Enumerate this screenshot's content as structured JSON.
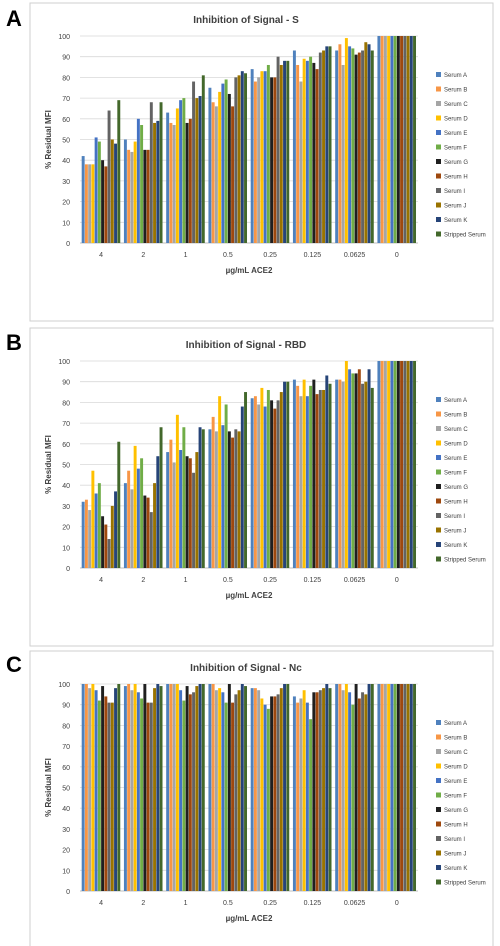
{
  "panels": [
    "A",
    "B",
    "C"
  ],
  "legend": [
    "Serum A",
    "Serum B",
    "Serum C",
    "Serum D",
    "Serum E",
    "Serum F",
    "Serum G",
    "Serum H",
    "Serum I",
    "Serum J",
    "Serum K",
    "Stripped Serum"
  ],
  "colors": [
    "#4F81BD",
    "#F79646",
    "#A5A5A5",
    "#FFC000",
    "#4472C4",
    "#70AD47",
    "#1F1F1F",
    "#9E480E",
    "#636363",
    "#997300",
    "#264478",
    "#43682B"
  ],
  "chart_data": [
    {
      "type": "bar",
      "title": "Inhibition of Signal - S",
      "xlabel": "µg/mL ACE2",
      "ylabel": "% Residual MFI",
      "ylim": [
        0,
        100
      ],
      "yticks": [
        0,
        10,
        20,
        30,
        40,
        50,
        60,
        70,
        80,
        90,
        100
      ],
      "categories": [
        "4",
        "2",
        "1",
        "0.5",
        "0.25",
        "0.125",
        "0.0625",
        "0"
      ],
      "series": [
        {
          "name": "Serum A",
          "values": [
            42,
            50,
            63,
            75,
            84,
            93,
            93,
            100
          ]
        },
        {
          "name": "Serum B",
          "values": [
            38,
            45,
            58,
            68,
            78,
            86,
            96,
            100
          ]
        },
        {
          "name": "Serum C",
          "values": [
            38,
            44,
            57,
            66,
            80,
            78,
            86,
            100
          ]
        },
        {
          "name": "Serum D",
          "values": [
            38,
            49,
            65,
            73,
            83,
            89,
            99,
            100
          ]
        },
        {
          "name": "Serum E",
          "values": [
            51,
            60,
            69,
            77,
            83,
            88,
            95,
            100
          ]
        },
        {
          "name": "Serum F",
          "values": [
            49,
            57,
            70,
            79,
            86,
            90,
            94,
            100
          ]
        },
        {
          "name": "Serum G",
          "values": [
            40,
            45,
            58,
            72,
            80,
            87,
            91,
            100
          ]
        },
        {
          "name": "Serum H",
          "values": [
            37,
            45,
            60,
            66,
            80,
            84,
            92,
            100
          ]
        },
        {
          "name": "Serum I",
          "values": [
            64,
            68,
            78,
            80,
            90,
            92,
            93,
            100
          ]
        },
        {
          "name": "Serum J",
          "values": [
            50,
            58,
            70,
            81,
            86,
            93,
            97,
            100
          ]
        },
        {
          "name": "Serum K",
          "values": [
            48,
            59,
            71,
            83,
            88,
            95,
            96,
            100
          ]
        },
        {
          "name": "Stripped Serum",
          "values": [
            69,
            68,
            81,
            82,
            88,
            95,
            93,
            100
          ]
        }
      ]
    },
    {
      "type": "bar",
      "title": "Inhibition of Signal - RBD",
      "xlabel": "µg/mL ACE2",
      "ylabel": "% Residual MFI",
      "ylim": [
        0,
        100
      ],
      "yticks": [
        0,
        10,
        20,
        30,
        40,
        50,
        60,
        70,
        80,
        90,
        100
      ],
      "categories": [
        "4",
        "2",
        "1",
        "0.5",
        "0.25",
        "0.125",
        "0.0625",
        "0"
      ],
      "series": [
        {
          "name": "Serum A",
          "values": [
            32,
            41,
            56,
            67,
            82,
            91,
            91,
            100
          ]
        },
        {
          "name": "Serum B",
          "values": [
            33,
            47,
            62,
            73,
            83,
            88,
            91,
            100
          ]
        },
        {
          "name": "Serum C",
          "values": [
            28,
            38,
            51,
            66,
            79,
            83,
            90,
            100
          ]
        },
        {
          "name": "Serum D",
          "values": [
            47,
            59,
            74,
            83,
            87,
            91,
            100,
            100
          ]
        },
        {
          "name": "Serum E",
          "values": [
            36,
            48,
            57,
            69,
            78,
            83,
            96,
            100
          ]
        },
        {
          "name": "Serum F",
          "values": [
            41,
            53,
            68,
            79,
            86,
            88,
            94,
            100
          ]
        },
        {
          "name": "Serum G",
          "values": [
            25,
            35,
            54,
            66,
            81,
            91,
            94,
            100
          ]
        },
        {
          "name": "Serum H",
          "values": [
            21,
            34,
            53,
            63,
            77,
            84,
            96,
            100
          ]
        },
        {
          "name": "Serum I",
          "values": [
            14,
            27,
            46,
            67,
            81,
            86,
            89,
            100
          ]
        },
        {
          "name": "Serum J",
          "values": [
            30,
            41,
            56,
            66,
            85,
            86,
            90,
            100
          ]
        },
        {
          "name": "Serum K",
          "values": [
            37,
            54,
            68,
            78,
            90,
            93,
            96,
            100
          ]
        },
        {
          "name": "Stripped Serum",
          "values": [
            61,
            68,
            67,
            85,
            90,
            89,
            87,
            100
          ]
        }
      ]
    },
    {
      "type": "bar",
      "title": "Inhibition of Signal - Nc",
      "xlabel": "µg/mL ACE2",
      "ylabel": "% Residual MFI",
      "ylim": [
        0,
        100
      ],
      "yticks": [
        0,
        10,
        20,
        30,
        40,
        50,
        60,
        70,
        80,
        90,
        100
      ],
      "categories": [
        "4",
        "2",
        "1",
        "0.5",
        "0.25",
        "0.125",
        "0.0625",
        "0"
      ],
      "series": [
        {
          "name": "Serum A",
          "values": [
            100,
            99,
            100,
            100,
            98,
            94,
            100,
            100
          ]
        },
        {
          "name": "Serum B",
          "values": [
            100,
            100,
            100,
            100,
            98,
            91,
            100,
            100
          ]
        },
        {
          "name": "Serum C",
          "values": [
            98,
            97,
            100,
            97,
            97,
            93,
            97,
            100
          ]
        },
        {
          "name": "Serum D",
          "values": [
            100,
            100,
            100,
            98,
            93,
            97,
            100,
            100
          ]
        },
        {
          "name": "Serum E",
          "values": [
            97,
            96,
            97,
            96,
            90,
            91,
            96,
            100
          ]
        },
        {
          "name": "Serum F",
          "values": [
            92,
            93,
            92,
            91,
            88,
            83,
            90,
            100
          ]
        },
        {
          "name": "Serum G",
          "values": [
            99,
            100,
            99,
            100,
            94,
            96,
            100,
            100
          ]
        },
        {
          "name": "Serum H",
          "values": [
            94,
            91,
            95,
            91,
            94,
            96,
            93,
            100
          ]
        },
        {
          "name": "Serum I",
          "values": [
            91,
            91,
            96,
            95,
            95,
            97,
            96,
            100
          ]
        },
        {
          "name": "Serum J",
          "values": [
            91,
            98,
            99,
            97,
            98,
            98,
            95,
            100
          ]
        },
        {
          "name": "Serum K",
          "values": [
            98,
            100,
            100,
            100,
            100,
            100,
            100,
            100
          ]
        },
        {
          "name": "Stripped Serum",
          "values": [
            100,
            99,
            100,
            99,
            100,
            98,
            100,
            100
          ]
        }
      ]
    }
  ]
}
